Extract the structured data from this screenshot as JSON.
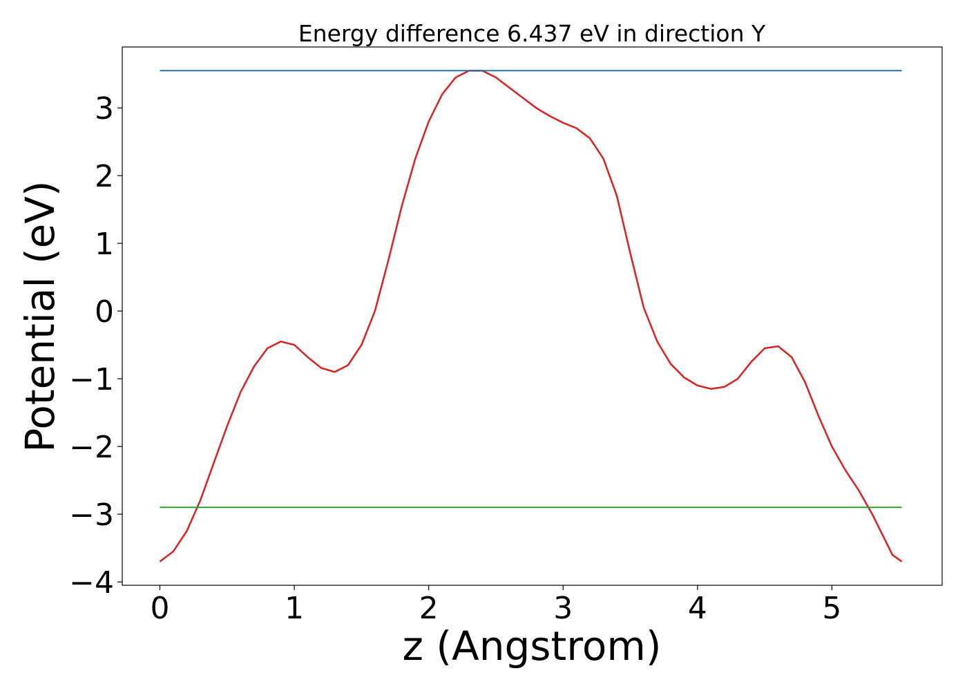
{
  "chart_data": {
    "type": "line",
    "title": "Energy difference 6.437 eV in direction Y",
    "xlabel": "z (Angstrom)",
    "ylabel": "Potential (eV)",
    "xlim": [
      -0.28,
      5.82
    ],
    "ylim": [
      -4.05,
      3.9
    ],
    "x_ticks": [
      0,
      1,
      2,
      3,
      4,
      5
    ],
    "x_tick_labels": [
      "0",
      "1",
      "2",
      "3",
      "4",
      "5"
    ],
    "y_ticks": [
      3,
      2,
      1,
      0,
      -1,
      -2,
      -3,
      -4
    ],
    "y_tick_labels": [
      "3",
      "2",
      "1",
      "0",
      "−1",
      "−2",
      "−3",
      "−4"
    ],
    "grid": false,
    "legend": "none",
    "series": [
      {
        "color": "#d62728",
        "x": [
          0,
          0.1,
          0.2,
          0.3,
          0.4,
          0.5,
          0.6,
          0.7,
          0.8,
          0.9,
          1.0,
          1.1,
          1.2,
          1.3,
          1.4,
          1.5,
          1.6,
          1.7,
          1.8,
          1.9,
          2.0,
          2.1,
          2.2,
          2.3,
          2.4,
          2.5,
          2.6,
          2.7,
          2.8,
          2.9,
          3.0,
          3.1,
          3.2,
          3.3,
          3.4,
          3.5,
          3.6,
          3.7,
          3.8,
          3.9,
          4.0,
          4.1,
          4.2,
          4.3,
          4.4,
          4.5,
          4.6,
          4.7,
          4.8,
          4.9,
          5.0,
          5.1,
          5.2,
          5.3,
          5.4,
          5.45,
          5.52
        ],
        "values": [
          -3.7,
          -3.55,
          -3.25,
          -2.8,
          -2.25,
          -1.7,
          -1.2,
          -0.82,
          -0.55,
          -0.45,
          -0.5,
          -0.68,
          -0.84,
          -0.9,
          -0.8,
          -0.5,
          0.0,
          0.75,
          1.55,
          2.25,
          2.8,
          3.2,
          3.45,
          3.55,
          3.55,
          3.45,
          3.3,
          3.15,
          3.0,
          2.88,
          2.78,
          2.7,
          2.55,
          2.25,
          1.7,
          0.85,
          0.05,
          -0.45,
          -0.78,
          -0.98,
          -1.1,
          -1.15,
          -1.12,
          -1.0,
          -0.75,
          -0.55,
          -0.52,
          -0.68,
          -1.05,
          -1.55,
          -2.0,
          -2.35,
          -2.65,
          -3.0,
          -3.4,
          -3.6,
          -3.7
        ]
      },
      {
        "color": "#1f77b4",
        "x": [
          0,
          5.52
        ],
        "values": [
          3.55,
          3.55
        ]
      },
      {
        "color": "#2ca02c",
        "x": [
          0,
          5.52
        ],
        "values": [
          -2.9,
          -2.9
        ]
      }
    ]
  }
}
